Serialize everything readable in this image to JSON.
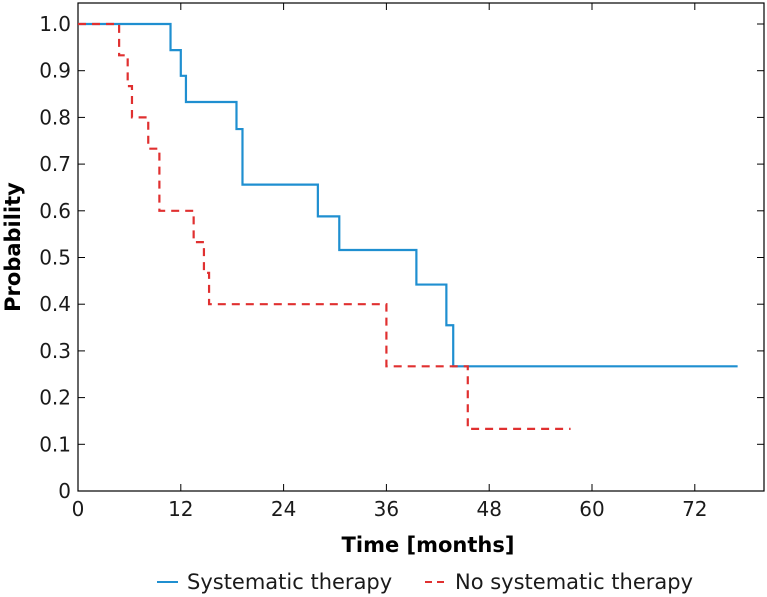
{
  "chart_data": {
    "type": "line",
    "title": "",
    "xlabel": "Time [months]",
    "ylabel": "Probability",
    "xlim": [
      0,
      80
    ],
    "ylim": [
      0,
      1.0
    ],
    "xticks": [
      0,
      12,
      24,
      36,
      48,
      60,
      72
    ],
    "yticks": [
      0,
      0.1,
      0.2,
      0.3,
      0.4,
      0.5,
      0.6,
      0.7,
      0.8,
      0.9,
      1.0
    ],
    "ytick_labels": [
      "0",
      "0.1",
      "0.2",
      "0.3",
      "0.4",
      "0.5",
      "0.6",
      "0.7",
      "0.8",
      "0.9",
      "1.0"
    ],
    "grid": false,
    "legend_position": "bottom",
    "series": [
      {
        "name": "Systematic therapy",
        "color": "#1f8fd0",
        "style": "solid",
        "step": true,
        "x": [
          0,
          10.8,
          12.0,
          12.6,
          18.5,
          19.2,
          28.0,
          30.5,
          39.5,
          43.0,
          43.8,
          77.0
        ],
        "y": [
          1.0,
          0.944,
          0.889,
          0.833,
          0.775,
          0.656,
          0.588,
          0.516,
          0.442,
          0.355,
          0.267,
          0.267
        ]
      },
      {
        "name": "No systematic therapy",
        "color": "#e03030",
        "style": "dashed",
        "step": true,
        "x": [
          0,
          4.8,
          5.8,
          6.3,
          8.2,
          9.5,
          13.5,
          14.7,
          15.3,
          36.0,
          45.5,
          57.5
        ],
        "y": [
          1.0,
          0.933,
          0.867,
          0.8,
          0.733,
          0.6,
          0.533,
          0.467,
          0.4,
          0.267,
          0.133,
          0.133
        ]
      }
    ]
  }
}
